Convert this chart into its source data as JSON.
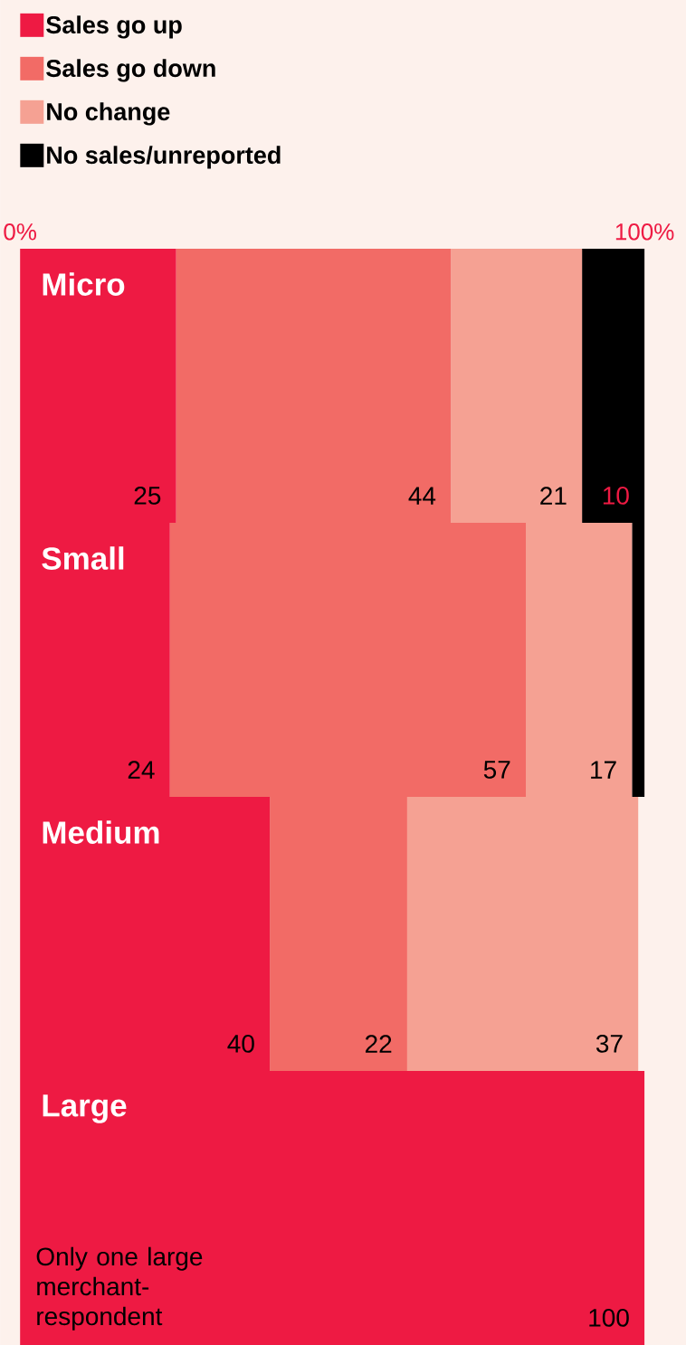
{
  "chart_data": {
    "type": "bar",
    "orientation": "horizontal",
    "stacked": true,
    "legend": "top left",
    "tick_labels": "x",
    "categories": [
      "Micro",
      "Small",
      "Medium",
      "Large"
    ],
    "xlim": [
      0,
      100
    ],
    "xticks": [
      {
        "value": 0,
        "label": "0%"
      },
      {
        "value": 100,
        "label": "100%"
      }
    ],
    "series": [
      {
        "name": "Sales go up",
        "color": "#ee1a43",
        "values": [
          25,
          24,
          40,
          100
        ],
        "value_labels": [
          "25",
          "24",
          "40",
          "100"
        ]
      },
      {
        "name": "Sales go down",
        "color": "#f26b66",
        "values": [
          44,
          57,
          22,
          null
        ],
        "value_labels": [
          "44",
          "57",
          "22",
          null
        ]
      },
      {
        "name": "No change",
        "color": "#f5a193",
        "values": [
          21,
          17,
          37,
          null
        ],
        "value_labels": [
          "21",
          "17",
          "37",
          null
        ]
      },
      {
        "name": "No sales/unreported",
        "color": "#000000",
        "values": [
          10,
          2,
          null,
          null
        ],
        "value_labels": [
          "10",
          null,
          null,
          null
        ]
      }
    ],
    "annotations": [
      "Only one large merchant-respondent"
    ]
  }
}
